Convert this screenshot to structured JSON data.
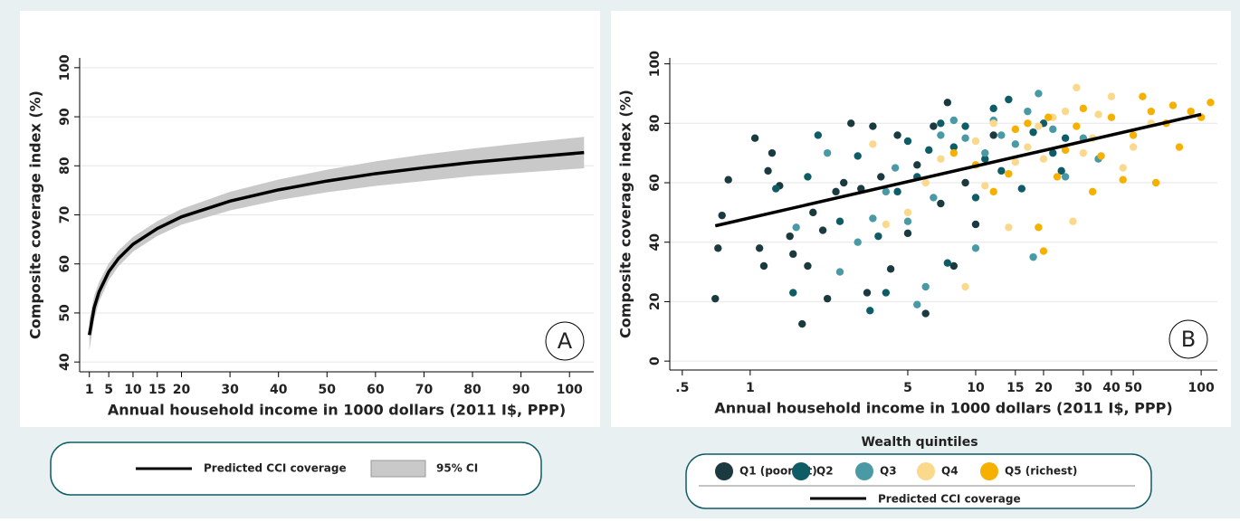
{
  "chart_data": [
    {
      "type": "line",
      "annotation": "A",
      "x_label": "Annual household income in 1000 dollars (2011 I$, PPP)",
      "y_label": "Composite coverage index (%)",
      "xlim": [
        -1,
        105
      ],
      "ylim": [
        38,
        102
      ],
      "xticks": [
        1,
        5,
        10,
        15,
        20,
        30,
        40,
        50,
        60,
        70,
        80,
        90,
        100
      ],
      "yticks": [
        40,
        50,
        60,
        70,
        80,
        90,
        100
      ],
      "grid": true,
      "x": [
        1,
        2,
        3,
        5,
        7,
        10,
        15,
        20,
        30,
        40,
        50,
        60,
        70,
        80,
        90,
        103
      ],
      "series": [
        {
          "name": "Predicted CCI coverage",
          "color": "#000000",
          "values": [
            45.5,
            51.1,
            54.3,
            58.4,
            61.1,
            64.0,
            67.2,
            69.6,
            72.8,
            75.1,
            76.9,
            78.4,
            79.6,
            80.7,
            81.6,
            82.7
          ]
        }
      ],
      "ci": {
        "name": "95% CI",
        "color": "#c9c9c9",
        "lower": [
          42.3,
          48.7,
          52.3,
          56.7,
          59.5,
          62.5,
          65.7,
          68.0,
          70.9,
          73.0,
          74.6,
          75.9,
          76.9,
          77.9,
          78.6,
          79.5
        ],
        "upper": [
          48.7,
          53.5,
          56.3,
          60.1,
          62.7,
          65.5,
          68.7,
          71.2,
          74.7,
          77.2,
          79.2,
          80.9,
          82.3,
          83.5,
          84.6,
          85.9
        ]
      }
    },
    {
      "type": "scatter",
      "annotation": "B",
      "x_label": "Annual household income in 1000 dollars (2011 I$, PPP)",
      "y_label": "Composite coverage index (%)",
      "xscale": "log",
      "xlim": [
        0.44,
        118
      ],
      "ylim": [
        -3,
        102
      ],
      "xticks": [
        {
          "value": 0.5,
          "label": ".5"
        },
        1,
        5,
        10,
        15,
        20,
        30,
        40,
        50,
        100
      ],
      "yticks": [
        0,
        20,
        40,
        60,
        80,
        100
      ],
      "grid": true,
      "legend_title": "Wealth quintiles",
      "series": [
        {
          "name": "Q1 (poorest)",
          "color": "#1b3a40",
          "x": [
            0.7,
            0.72,
            0.75,
            0.8,
            1.05,
            1.1,
            1.15,
            1.2,
            1.25,
            1.35,
            1.5,
            1.55,
            1.7,
            1.8,
            1.9,
            2.1,
            2.2,
            2.4,
            2.6,
            2.8,
            3.1,
            3.3,
            3.5,
            3.8,
            4.2,
            4.5,
            5,
            5.5,
            6,
            6.5,
            7,
            7.5,
            8,
            9,
            10,
            12
          ],
          "values": [
            21,
            38,
            49,
            61,
            75,
            38,
            32,
            64,
            70,
            59,
            42,
            36,
            12.5,
            32,
            50,
            44,
            21,
            57,
            60,
            80,
            58,
            23,
            79,
            62,
            31,
            76,
            43,
            66,
            16,
            79,
            53,
            87,
            32,
            60,
            46,
            76
          ]
        },
        {
          "name": "Q2",
          "color": "#0e5c66",
          "x": [
            1.3,
            1.55,
            1.8,
            2.0,
            2.5,
            3,
            3.4,
            3.7,
            4,
            4.5,
            5,
            5.5,
            6.2,
            7,
            7.5,
            8,
            9,
            10,
            11,
            12,
            13,
            14,
            16,
            18,
            20,
            22,
            24,
            25
          ],
          "values": [
            58,
            23,
            62,
            76,
            47,
            69,
            17,
            42,
            23,
            57,
            74,
            62,
            71,
            80,
            33,
            72,
            79,
            55,
            68,
            85,
            64,
            88,
            58,
            77,
            80,
            70,
            64,
            75
          ]
        },
        {
          "name": "Q3",
          "color": "#4a9aa5",
          "x": [
            1.6,
            2.2,
            2.5,
            3,
            3.5,
            4,
            4.4,
            5,
            5.5,
            6,
            6.5,
            7,
            8,
            9,
            10,
            11,
            12,
            13,
            15,
            17,
            18,
            19,
            22,
            25,
            30,
            35
          ],
          "values": [
            45,
            70,
            30,
            40,
            48,
            57,
            65,
            47,
            19,
            25,
            55,
            76,
            81,
            75,
            38,
            70,
            81,
            76,
            73,
            84,
            35,
            90,
            78,
            62,
            75,
            68
          ]
        },
        {
          "name": "Q4",
          "color": "#fbd98c",
          "x": [
            3.5,
            4,
            5,
            6,
            7,
            9,
            10,
            11,
            12,
            14,
            15,
            17,
            19,
            20,
            22,
            25,
            27,
            28,
            30,
            33,
            35,
            40,
            45,
            50,
            60
          ],
          "values": [
            73,
            46,
            50,
            60,
            68,
            25,
            74,
            59,
            80,
            45,
            67,
            72,
            79,
            68,
            82,
            84,
            47,
            92,
            70,
            75,
            83,
            89,
            65,
            72,
            80
          ]
        },
        {
          "name": "Q5 (richest)",
          "color": "#f5b000",
          "x": [
            8,
            10,
            12,
            14,
            15,
            17,
            19,
            20,
            21,
            23,
            25,
            28,
            30,
            33,
            36,
            40,
            45,
            50,
            55,
            60,
            63,
            70,
            75,
            80,
            90,
            100,
            110
          ],
          "values": [
            70,
            66,
            57,
            63,
            78,
            80,
            45,
            37,
            82,
            62,
            71,
            79,
            85,
            57,
            69,
            82,
            61,
            76,
            89,
            84,
            60,
            80,
            86,
            72,
            84,
            82,
            87
          ]
        }
      ],
      "fit": {
        "name": "Predicted CCI coverage",
        "color": "#000000",
        "x": [
          0.7,
          100
        ],
        "values": [
          45.5,
          83
        ]
      }
    }
  ]
}
